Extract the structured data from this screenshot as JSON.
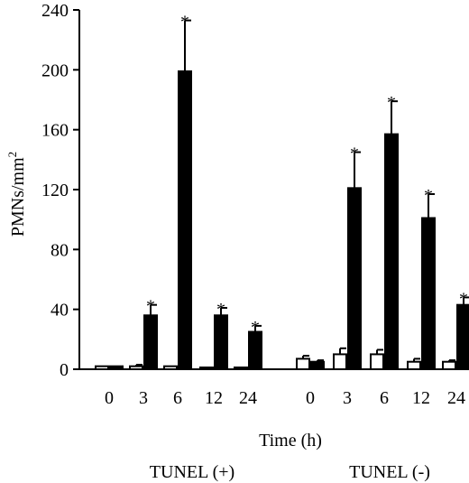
{
  "chart_data": {
    "type": "bar",
    "ylabel": "PMNs/mm",
    "ylabel_sup": "2",
    "xlabel": "Time (h)",
    "ylim": [
      0,
      240
    ],
    "yticks": [
      0,
      40,
      80,
      120,
      160,
      200,
      240
    ],
    "groups": [
      {
        "label": "TUNEL (+)",
        "categories": [
          "0",
          "3",
          "6",
          "12",
          "24"
        ],
        "series": [
          {
            "fill": "#ffffff",
            "values": [
              2,
              2,
              2,
              1,
              1
            ],
            "errors": [
              0,
              1,
              0,
              0,
              0
            ],
            "significant": [
              false,
              false,
              false,
              false,
              false
            ]
          },
          {
            "fill": "#000000",
            "values": [
              2,
              36,
              199,
              36,
              25
            ],
            "errors": [
              0,
              7,
              34,
              5,
              4
            ],
            "significant": [
              false,
              true,
              true,
              true,
              true
            ]
          }
        ]
      },
      {
        "label": "TUNEL (-)",
        "categories": [
          "0",
          "3",
          "6",
          "12",
          "24"
        ],
        "series": [
          {
            "fill": "#ffffff",
            "values": [
              7,
              10,
              10,
              5,
              5
            ],
            "errors": [
              2,
              4,
              3,
              2,
              1
            ],
            "significant": [
              false,
              false,
              false,
              false,
              false
            ]
          },
          {
            "fill": "#000000",
            "values": [
              5,
              121,
              157,
              101,
              43
            ],
            "errors": [
              1,
              24,
              22,
              16,
              5
            ],
            "significant": [
              false,
              true,
              true,
              true,
              true
            ]
          }
        ]
      }
    ],
    "significance_marker": "*"
  },
  "colors": {
    "ink": "#000000",
    "paper": "#ffffff"
  }
}
